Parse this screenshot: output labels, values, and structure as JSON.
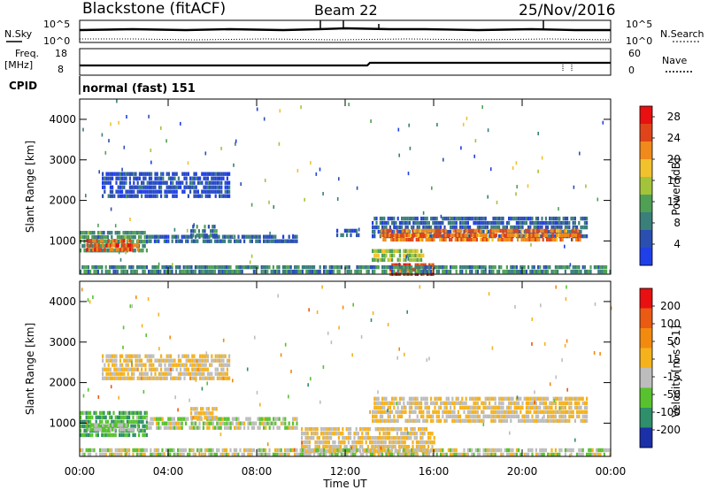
{
  "header": {
    "station": "Blackstone (fitACF)",
    "beam": "Beam 22",
    "date": "25/Nov/2016"
  },
  "side_labels": {
    "nsky": "N.Sky",
    "nsearch": "N.Search",
    "freq": "Freq.",
    "freq_unit": "[MHz]",
    "nave": "Nave",
    "cpid": "CPID",
    "cpid_value": "normal (fast) 151"
  },
  "aux_ticks": {
    "noise_left": [
      "10^5",
      "10^0"
    ],
    "noise_right": [
      "10^5",
      "10^0"
    ],
    "freq_left": [
      "18",
      "8"
    ],
    "nave_right": [
      "60",
      "0"
    ]
  },
  "colors": {
    "power_scale": [
      "#1f3fe8",
      "#2b4fb0",
      "#3a7f7a",
      "#4fa055",
      "#a3c43a",
      "#f2c12e",
      "#f08a1c",
      "#e0441a",
      "#e81010"
    ],
    "velocity_scale": [
      "#1b2fa8",
      "#2e8f6a",
      "#58c22e",
      "#bdbdbd",
      "#f5b21c",
      "#f28a10",
      "#ea5a12",
      "#e81010"
    ]
  },
  "chart_data": [
    {
      "type": "heatmap",
      "title": "Power",
      "xlabel": "",
      "ylabel": "Slant Range [km]",
      "x_ticks": [
        "00:00",
        "04:00",
        "08:00",
        "12:00",
        "16:00",
        "20:00",
        "00:00"
      ],
      "y_ticks": [
        "1000",
        "2000",
        "3000",
        "4000"
      ],
      "ylim": [
        180,
        4500
      ],
      "colorbar": {
        "label": "Power [dB]",
        "ticks": [
          "4",
          "8",
          "12",
          "16",
          "20",
          "24",
          "28"
        ],
        "range": [
          0,
          30
        ]
      },
      "regions": [
        {
          "t0": 0.0,
          "t1": 3.0,
          "r0": 750,
          "r1": 1250,
          "v": 10
        },
        {
          "t0": 0.3,
          "t1": 2.6,
          "r0": 800,
          "r1": 1050,
          "v": 24
        },
        {
          "t0": 3.0,
          "t1": 9.8,
          "r0": 950,
          "r1": 1150,
          "v": 6
        },
        {
          "t0": 5.0,
          "t1": 6.2,
          "r0": 1150,
          "r1": 1400,
          "v": 8
        },
        {
          "t0": 1.0,
          "t1": 6.8,
          "r0": 2100,
          "r1": 2700,
          "v": 4
        },
        {
          "t0": 11.6,
          "t1": 12.6,
          "r0": 1100,
          "r1": 1300,
          "v": 5
        },
        {
          "t0": 13.2,
          "t1": 22.9,
          "r0": 1150,
          "r1": 1600,
          "v": 6
        },
        {
          "t0": 13.6,
          "t1": 22.6,
          "r0": 1000,
          "r1": 1300,
          "v": 23
        },
        {
          "t0": 13.2,
          "t1": 15.5,
          "r0": 550,
          "r1": 800,
          "v": 15
        },
        {
          "t0": 14.0,
          "t1": 16.0,
          "r0": 200,
          "r1": 450,
          "v": 25
        },
        {
          "t0": 0.0,
          "t1": 24.0,
          "r0": 200,
          "r1": 400,
          "v": 9
        }
      ]
    },
    {
      "type": "heatmap",
      "title": "Velocity",
      "xlabel": "Time UT",
      "ylabel": "Slant Range [km]",
      "x_ticks": [
        "00:00",
        "04:00",
        "08:00",
        "12:00",
        "16:00",
        "20:00",
        "00:00"
      ],
      "y_ticks": [
        "1000",
        "2000",
        "3000",
        "4000"
      ],
      "ylim": [
        180,
        4500
      ],
      "colorbar": {
        "label": "Velocity [m s^-1]",
        "ticks": [
          "200",
          "100",
          "50",
          "15",
          "-15",
          "-50",
          "-100",
          "-200"
        ],
        "range": [
          -250,
          250
        ]
      },
      "regions": [
        {
          "t0": 0.0,
          "t1": 3.0,
          "r0": 750,
          "r1": 1300,
          "v": -120
        },
        {
          "t0": 0.3,
          "t1": 2.6,
          "r0": 800,
          "r1": 1000,
          "v": -60
        },
        {
          "t0": 3.0,
          "t1": 9.8,
          "r0": 900,
          "r1": 1150,
          "v": -40
        },
        {
          "t0": 5.0,
          "t1": 6.2,
          "r0": 1150,
          "r1": 1400,
          "v": 5
        },
        {
          "t0": 1.0,
          "t1": 6.8,
          "r0": 2100,
          "r1": 2700,
          "v": 5
        },
        {
          "t0": 13.2,
          "t1": 22.9,
          "r0": 1000,
          "r1": 1650,
          "v": 0
        },
        {
          "t0": 10.0,
          "t1": 16.0,
          "r0": 350,
          "r1": 900,
          "v": 0
        },
        {
          "t0": 0.0,
          "t1": 24.0,
          "r0": 200,
          "r1": 380,
          "v": -35
        }
      ]
    }
  ]
}
